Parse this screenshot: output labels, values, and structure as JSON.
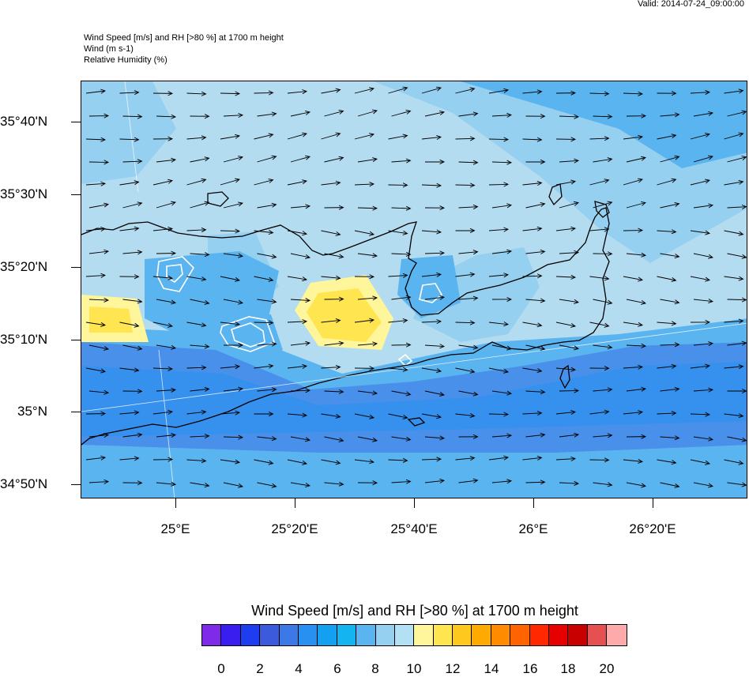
{
  "header": {
    "valid_label": "Valid: 2014-07-24_09:00:00",
    "title_lines": [
      "Wind Speed [m/s] and RH [>80 %] at 1700 m height",
      "Wind   (m s-1)",
      "Relative Humidity   (%)"
    ]
  },
  "map": {
    "background_color": "#b4dcf0",
    "coastline_color": "#000000",
    "rh_contour_color": "#ffffff",
    "wind_arrow_color": "#000000",
    "lat_labels": [
      "35°40'N",
      "35°30'N",
      "35°20'N",
      "35°10'N",
      "35°N",
      "34°50'N"
    ],
    "lon_labels": [
      "25°E",
      "25°20'E",
      "25°40'E",
      "26°E",
      "26°20'E"
    ]
  },
  "colorbar": {
    "title": "Wind Speed [m/s] and RH [>80 %] at 1700 m height",
    "colors": [
      "#7f2ae8",
      "#3a1ef0",
      "#1e3cf0",
      "#3c5adc",
      "#3c78e6",
      "#2890f0",
      "#14a0f0",
      "#14b4f0",
      "#5ab4f0",
      "#96d0f0",
      "#b4e0f5",
      "#fff59a",
      "#ffe650",
      "#ffc81e",
      "#ffaa00",
      "#ff8c00",
      "#ff6400",
      "#ff2800",
      "#e60000",
      "#c80000",
      "#e65050",
      "#ffaaaa"
    ],
    "labels": [
      "0",
      "2",
      "4",
      "6",
      "8",
      "10",
      "12",
      "14",
      "16",
      "18",
      "20"
    ]
  }
}
